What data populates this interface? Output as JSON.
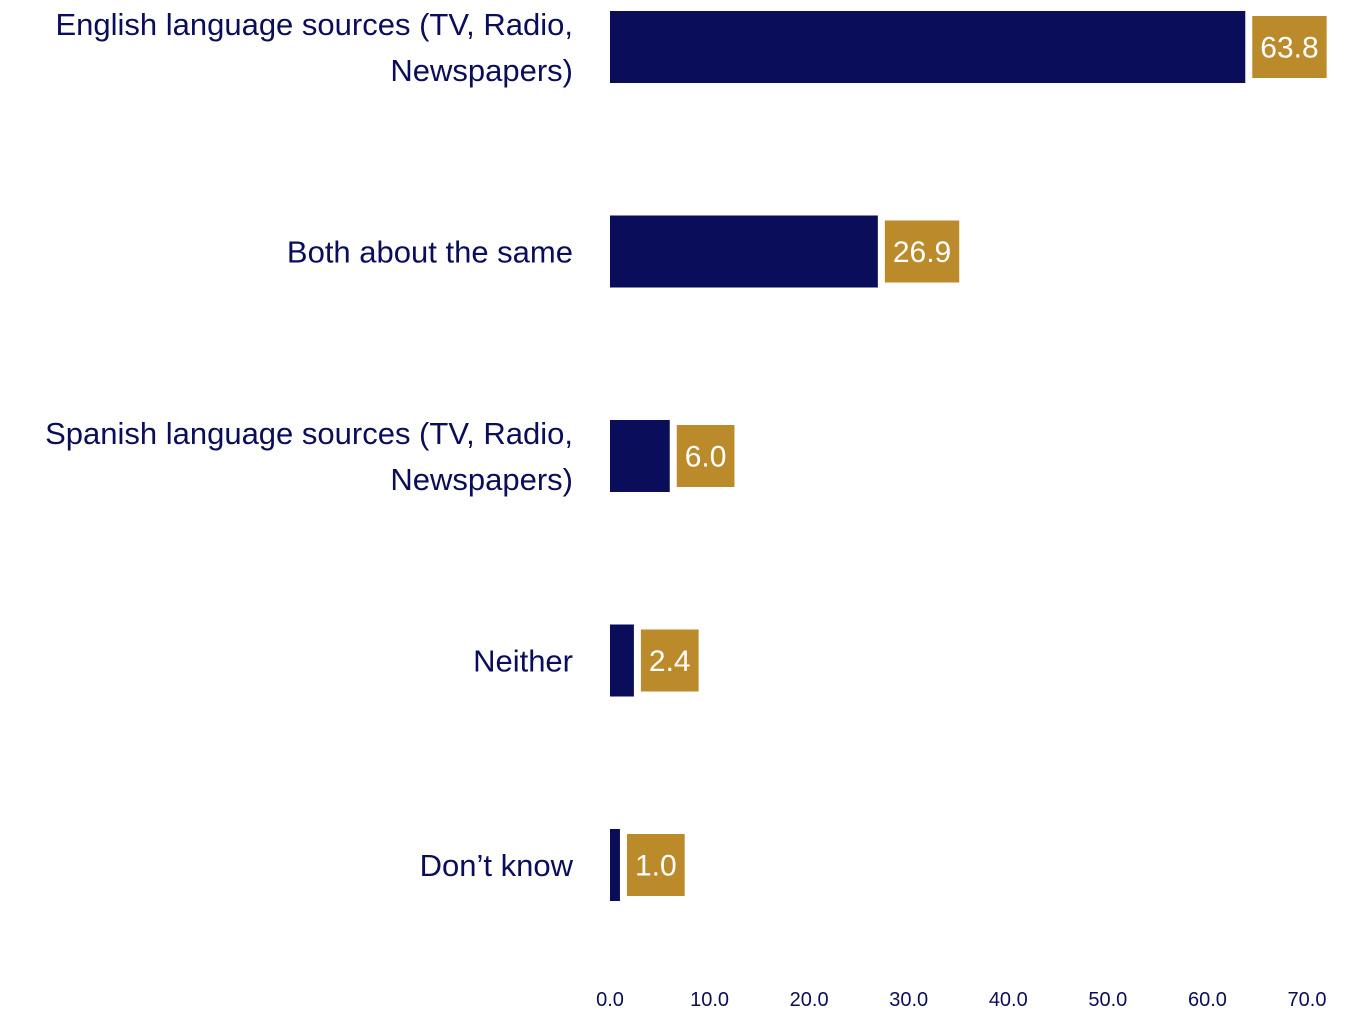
{
  "chart_data": {
    "type": "bar",
    "orientation": "horizontal",
    "title": "",
    "xlabel": "",
    "ylabel": "",
    "categories": [
      [
        "English language sources (TV, Radio,",
        "Newspapers)"
      ],
      [
        "Both about the same"
      ],
      [
        "Spanish language sources (TV, Radio,",
        "Newspapers)"
      ],
      [
        "Neither"
      ],
      [
        "Don’t know"
      ]
    ],
    "values": [
      63.8,
      26.9,
      6.0,
      2.4,
      1.0
    ],
    "data_labels": [
      "63.8",
      "26.9",
      "6.0",
      "2.4",
      "1.0"
    ],
    "xlim": [
      0,
      70
    ],
    "x_ticks": [
      "0.0",
      "10.0",
      "20.0",
      "30.0",
      "40.0",
      "50.0",
      "60.0",
      "70.0"
    ],
    "grid": false,
    "legend": "none",
    "colors": {
      "bar": "#0a0d5a",
      "label_box": "#bb8a2a",
      "label_text": "#ffffff",
      "category_text": "#0a0d5a",
      "tick_text": "#0a0d5a"
    }
  }
}
